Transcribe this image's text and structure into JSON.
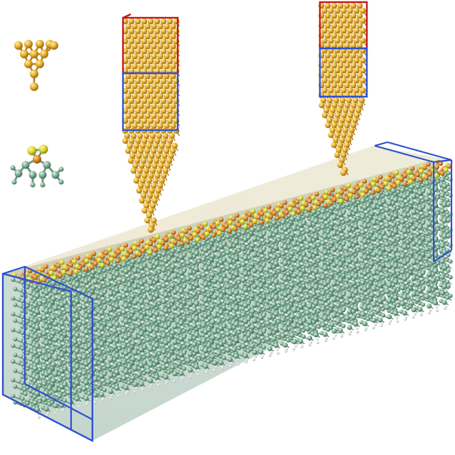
{
  "scene": {
    "background": "#ffffff",
    "colors": {
      "gold_atom": "#e8b23a",
      "gold_atom_light": "#ffdf74",
      "gold_atom_dark": "#9a6a10",
      "substrate_atom": "#7fae95",
      "substrate_atom_light": "#c6e4d2",
      "substrate_atom_dark": "#3f6b55",
      "hydrogen_atom": "#f2f2f2",
      "sulfur_atom": "#e6e43a",
      "metal_surface_atom": "#e08a2a",
      "bond_green": "#6f9a84",
      "box_blue": "#2f4fd0",
      "box_red": "#c01818"
    },
    "elements": {
      "legend_gold_motif": "gold-cluster-icon",
      "legend_molecule_motif": "thiolate-molecule-icon",
      "left_electrode": "gold-tip-electrode",
      "right_electrode": "gold-tip-electrode",
      "substrate": "substrate-slab",
      "left_lead_box": "lead-region-box",
      "right_lead_box": "lead-region-box"
    }
  }
}
